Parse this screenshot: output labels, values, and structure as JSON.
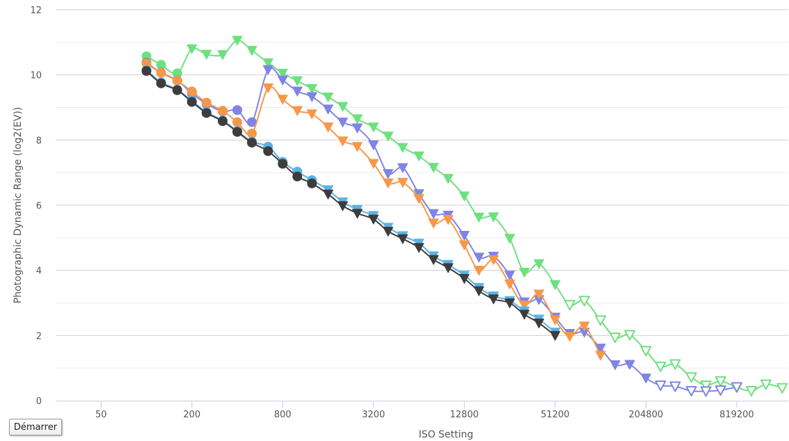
{
  "start_button_label": "Démarrer",
  "chart_data": {
    "type": "line",
    "title": "",
    "xlabel": "ISO Setting",
    "ylabel": "Photographic Dynamic Range (log2(EV))",
    "x_scale": "log2",
    "xlim": [
      25,
      1800000
    ],
    "ylim": [
      0,
      12
    ],
    "x_ticks": [
      50,
      200,
      800,
      3200,
      12800,
      51200,
      204800,
      819200
    ],
    "y_ticks": [
      0,
      2,
      4,
      6,
      8,
      10,
      12
    ],
    "grid": "horizontal",
    "legend": "none",
    "series": [
      {
        "color": "#6fe07f",
        "points": [
          {
            "iso": 100,
            "dr": 10.57,
            "marker": "circle"
          },
          {
            "iso": 125,
            "dr": 10.31,
            "marker": "circle"
          },
          {
            "iso": 160,
            "dr": 10.05,
            "marker": "circle"
          },
          {
            "iso": 200,
            "dr": 10.8,
            "marker": "tri"
          },
          {
            "iso": 250,
            "dr": 10.63,
            "marker": "tri"
          },
          {
            "iso": 320,
            "dr": 10.62,
            "marker": "tri"
          },
          {
            "iso": 400,
            "dr": 11.06,
            "marker": "tri"
          },
          {
            "iso": 500,
            "dr": 10.75,
            "marker": "tri"
          },
          {
            "iso": 640,
            "dr": 10.37,
            "marker": "tri"
          },
          {
            "iso": 800,
            "dr": 10.05,
            "marker": "tri"
          },
          {
            "iso": 1000,
            "dr": 9.82,
            "marker": "tri"
          },
          {
            "iso": 1250,
            "dr": 9.58,
            "marker": "tri"
          },
          {
            "iso": 1600,
            "dr": 9.32,
            "marker": "tri"
          },
          {
            "iso": 2000,
            "dr": 9.03,
            "marker": "tri"
          },
          {
            "iso": 2500,
            "dr": 8.65,
            "marker": "tri"
          },
          {
            "iso": 3200,
            "dr": 8.4,
            "marker": "tri"
          },
          {
            "iso": 4000,
            "dr": 8.12,
            "marker": "tri"
          },
          {
            "iso": 5000,
            "dr": 7.77,
            "marker": "tri"
          },
          {
            "iso": 6400,
            "dr": 7.51,
            "marker": "tri"
          },
          {
            "iso": 8000,
            "dr": 7.16,
            "marker": "tri"
          },
          {
            "iso": 10000,
            "dr": 6.82,
            "marker": "tri"
          },
          {
            "iso": 12800,
            "dr": 6.28,
            "marker": "tri"
          },
          {
            "iso": 16000,
            "dr": 5.63,
            "marker": "tri"
          },
          {
            "iso": 20000,
            "dr": 5.64,
            "marker": "tri"
          },
          {
            "iso": 25600,
            "dr": 4.98,
            "marker": "tri"
          },
          {
            "iso": 32000,
            "dr": 3.94,
            "marker": "tri"
          },
          {
            "iso": 40000,
            "dr": 4.2,
            "marker": "tri"
          },
          {
            "iso": 51200,
            "dr": 3.56,
            "marker": "tri"
          },
          {
            "iso": 64000,
            "dr": 2.94,
            "marker": "tri-open"
          },
          {
            "iso": 80000,
            "dr": 3.07,
            "marker": "tri-open"
          },
          {
            "iso": 102400,
            "dr": 2.47,
            "marker": "tri-open"
          },
          {
            "iso": 128000,
            "dr": 1.94,
            "marker": "tri-open"
          },
          {
            "iso": 160000,
            "dr": 2.02,
            "marker": "tri-open"
          },
          {
            "iso": 204800,
            "dr": 1.53,
            "marker": "tri-open"
          },
          {
            "iso": 256000,
            "dr": 1.05,
            "marker": "tri-open"
          },
          {
            "iso": 320000,
            "dr": 1.12,
            "marker": "tri-open"
          },
          {
            "iso": 409600,
            "dr": 0.72,
            "marker": "tri-open"
          },
          {
            "iso": 512000,
            "dr": 0.47,
            "marker": "tri-open"
          },
          {
            "iso": 640000,
            "dr": 0.6,
            "marker": "tri-open"
          },
          {
            "iso": 819200,
            "dr": 0.41,
            "marker": "tri-open"
          },
          {
            "iso": 1024000,
            "dr": 0.3,
            "marker": "tri-open"
          },
          {
            "iso": 1280000,
            "dr": 0.5,
            "marker": "tri-open"
          },
          {
            "iso": 1638400,
            "dr": 0.39,
            "marker": "tri-open"
          }
        ]
      },
      {
        "color": "#7f84e6",
        "points": [
          {
            "iso": 100,
            "dr": 10.38,
            "marker": "circle"
          },
          {
            "iso": 125,
            "dr": 10.07,
            "marker": "circle"
          },
          {
            "iso": 160,
            "dr": 9.83,
            "marker": "circle"
          },
          {
            "iso": 200,
            "dr": 9.43,
            "marker": "circle"
          },
          {
            "iso": 250,
            "dr": 9.11,
            "marker": "circle"
          },
          {
            "iso": 320,
            "dr": 8.88,
            "marker": "circle"
          },
          {
            "iso": 400,
            "dr": 8.92,
            "marker": "circle"
          },
          {
            "iso": 500,
            "dr": 8.55,
            "marker": "circle"
          },
          {
            "iso": 640,
            "dr": 10.16,
            "marker": "tri"
          },
          {
            "iso": 800,
            "dr": 9.84,
            "marker": "tri"
          },
          {
            "iso": 1000,
            "dr": 9.5,
            "marker": "tri"
          },
          {
            "iso": 1250,
            "dr": 9.33,
            "marker": "tri"
          },
          {
            "iso": 1600,
            "dr": 8.95,
            "marker": "tri"
          },
          {
            "iso": 2000,
            "dr": 8.55,
            "marker": "tri"
          },
          {
            "iso": 2500,
            "dr": 8.37,
            "marker": "tri"
          },
          {
            "iso": 3200,
            "dr": 7.85,
            "marker": "tri"
          },
          {
            "iso": 4000,
            "dr": 6.97,
            "marker": "tri"
          },
          {
            "iso": 5000,
            "dr": 7.15,
            "marker": "tri"
          },
          {
            "iso": 6400,
            "dr": 6.35,
            "marker": "tri"
          },
          {
            "iso": 8000,
            "dr": 5.74,
            "marker": "tri"
          },
          {
            "iso": 10000,
            "dr": 5.69,
            "marker": "tri"
          },
          {
            "iso": 12800,
            "dr": 5.07,
            "marker": "tri"
          },
          {
            "iso": 16000,
            "dr": 4.4,
            "marker": "tri"
          },
          {
            "iso": 20000,
            "dr": 4.43,
            "marker": "tri"
          },
          {
            "iso": 25600,
            "dr": 3.85,
            "marker": "tri"
          },
          {
            "iso": 32000,
            "dr": 3.03,
            "marker": "tri"
          },
          {
            "iso": 40000,
            "dr": 3.1,
            "marker": "tri"
          },
          {
            "iso": 51200,
            "dr": 2.56,
            "marker": "tri"
          },
          {
            "iso": 64000,
            "dr": 2.06,
            "marker": "tri"
          },
          {
            "iso": 80000,
            "dr": 2.1,
            "marker": "tri"
          },
          {
            "iso": 102400,
            "dr": 1.61,
            "marker": "tri"
          },
          {
            "iso": 128000,
            "dr": 1.1,
            "marker": "tri"
          },
          {
            "iso": 160000,
            "dr": 1.11,
            "marker": "tri"
          },
          {
            "iso": 204800,
            "dr": 0.69,
            "marker": "tri"
          },
          {
            "iso": 256000,
            "dr": 0.47,
            "marker": "tri-open"
          },
          {
            "iso": 320000,
            "dr": 0.44,
            "marker": "tri-open"
          },
          {
            "iso": 409600,
            "dr": 0.3,
            "marker": "tri-open"
          },
          {
            "iso": 512000,
            "dr": 0.29,
            "marker": "tri-open"
          },
          {
            "iso": 640000,
            "dr": 0.32,
            "marker": "tri-open"
          },
          {
            "iso": 819200,
            "dr": 0.42,
            "marker": "tri-open"
          }
        ]
      },
      {
        "color": "#f5984a",
        "points": [
          {
            "iso": 100,
            "dr": 10.35,
            "marker": "circle"
          },
          {
            "iso": 125,
            "dr": 10.06,
            "marker": "circle"
          },
          {
            "iso": 160,
            "dr": 9.82,
            "marker": "circle"
          },
          {
            "iso": 200,
            "dr": 9.49,
            "marker": "circle"
          },
          {
            "iso": 250,
            "dr": 9.15,
            "marker": "circle"
          },
          {
            "iso": 320,
            "dr": 8.9,
            "marker": "circle"
          },
          {
            "iso": 400,
            "dr": 8.55,
            "marker": "circle"
          },
          {
            "iso": 500,
            "dr": 8.2,
            "marker": "circle"
          },
          {
            "iso": 640,
            "dr": 9.6,
            "marker": "tri"
          },
          {
            "iso": 800,
            "dr": 9.25,
            "marker": "tri"
          },
          {
            "iso": 1000,
            "dr": 8.9,
            "marker": "tri"
          },
          {
            "iso": 1250,
            "dr": 8.8,
            "marker": "tri"
          },
          {
            "iso": 1600,
            "dr": 8.4,
            "marker": "tri"
          },
          {
            "iso": 2000,
            "dr": 7.97,
            "marker": "tri"
          },
          {
            "iso": 2500,
            "dr": 7.8,
            "marker": "tri"
          },
          {
            "iso": 3200,
            "dr": 7.28,
            "marker": "tri"
          },
          {
            "iso": 4000,
            "dr": 6.68,
            "marker": "tri"
          },
          {
            "iso": 5000,
            "dr": 6.7,
            "marker": "tri"
          },
          {
            "iso": 6400,
            "dr": 6.2,
            "marker": "tri"
          },
          {
            "iso": 8000,
            "dr": 5.45,
            "marker": "tri"
          },
          {
            "iso": 10000,
            "dr": 5.56,
            "marker": "tri"
          },
          {
            "iso": 12800,
            "dr": 4.78,
            "marker": "tri"
          },
          {
            "iso": 16000,
            "dr": 4.0,
            "marker": "tri"
          },
          {
            "iso": 20000,
            "dr": 4.32,
            "marker": "tri"
          },
          {
            "iso": 25600,
            "dr": 3.58,
            "marker": "tri"
          },
          {
            "iso": 32000,
            "dr": 2.93,
            "marker": "tri"
          },
          {
            "iso": 40000,
            "dr": 3.27,
            "marker": "tri"
          },
          {
            "iso": 51200,
            "dr": 2.48,
            "marker": "tri"
          },
          {
            "iso": 64000,
            "dr": 1.97,
            "marker": "tri"
          },
          {
            "iso": 80000,
            "dr": 2.29,
            "marker": "tri"
          },
          {
            "iso": 102400,
            "dr": 1.39,
            "marker": "tri"
          }
        ]
      },
      {
        "color": "#5ab2e8",
        "points": [
          {
            "iso": 100,
            "dr": 10.15,
            "marker": "circle"
          },
          {
            "iso": 125,
            "dr": 9.77,
            "marker": "circle"
          },
          {
            "iso": 160,
            "dr": 9.55,
            "marker": "circle"
          },
          {
            "iso": 200,
            "dr": 9.2,
            "marker": "circle"
          },
          {
            "iso": 250,
            "dr": 8.86,
            "marker": "circle"
          },
          {
            "iso": 320,
            "dr": 8.6,
            "marker": "circle"
          },
          {
            "iso": 400,
            "dr": 8.28,
            "marker": "circle"
          },
          {
            "iso": 500,
            "dr": 7.95,
            "marker": "circle"
          },
          {
            "iso": 640,
            "dr": 7.8,
            "marker": "circle"
          },
          {
            "iso": 800,
            "dr": 7.33,
            "marker": "circle"
          },
          {
            "iso": 1000,
            "dr": 7.03,
            "marker": "circle"
          },
          {
            "iso": 1250,
            "dr": 6.77,
            "marker": "circle"
          },
          {
            "iso": 1600,
            "dr": 6.47,
            "marker": "tri"
          },
          {
            "iso": 2000,
            "dr": 6.1,
            "marker": "tri"
          },
          {
            "iso": 2500,
            "dr": 5.87,
            "marker": "tri"
          },
          {
            "iso": 3200,
            "dr": 5.68,
            "marker": "tri"
          },
          {
            "iso": 4000,
            "dr": 5.32,
            "marker": "tri"
          },
          {
            "iso": 5000,
            "dr": 5.06,
            "marker": "tri"
          },
          {
            "iso": 6400,
            "dr": 4.83,
            "marker": "tri"
          },
          {
            "iso": 8000,
            "dr": 4.44,
            "marker": "tri"
          },
          {
            "iso": 10000,
            "dr": 4.18,
            "marker": "tri"
          },
          {
            "iso": 12800,
            "dr": 3.85,
            "marker": "tri"
          },
          {
            "iso": 16000,
            "dr": 3.47,
            "marker": "tri"
          },
          {
            "iso": 20000,
            "dr": 3.21,
            "marker": "tri"
          },
          {
            "iso": 25600,
            "dr": 3.07,
            "marker": "tri"
          },
          {
            "iso": 32000,
            "dr": 2.75,
            "marker": "tri"
          },
          {
            "iso": 40000,
            "dr": 2.5,
            "marker": "tri"
          },
          {
            "iso": 51200,
            "dr": 2.1,
            "marker": "tri"
          }
        ]
      },
      {
        "color": "#3d3d3d",
        "points": [
          {
            "iso": 100,
            "dr": 10.12,
            "marker": "circle"
          },
          {
            "iso": 125,
            "dr": 9.74,
            "marker": "circle"
          },
          {
            "iso": 160,
            "dr": 9.53,
            "marker": "circle"
          },
          {
            "iso": 200,
            "dr": 9.17,
            "marker": "circle"
          },
          {
            "iso": 250,
            "dr": 8.83,
            "marker": "circle"
          },
          {
            "iso": 320,
            "dr": 8.58,
            "marker": "circle"
          },
          {
            "iso": 400,
            "dr": 8.25,
            "marker": "circle"
          },
          {
            "iso": 500,
            "dr": 7.92,
            "marker": "circle"
          },
          {
            "iso": 640,
            "dr": 7.66,
            "marker": "circle"
          },
          {
            "iso": 800,
            "dr": 7.27,
            "marker": "circle"
          },
          {
            "iso": 1000,
            "dr": 6.88,
            "marker": "circle"
          },
          {
            "iso": 1250,
            "dr": 6.67,
            "marker": "circle"
          },
          {
            "iso": 1600,
            "dr": 6.34,
            "marker": "tri"
          },
          {
            "iso": 2000,
            "dr": 5.98,
            "marker": "tri"
          },
          {
            "iso": 2500,
            "dr": 5.75,
            "marker": "tri"
          },
          {
            "iso": 3200,
            "dr": 5.57,
            "marker": "tri"
          },
          {
            "iso": 4000,
            "dr": 5.2,
            "marker": "tri"
          },
          {
            "iso": 5000,
            "dr": 4.97,
            "marker": "tri"
          },
          {
            "iso": 6400,
            "dr": 4.7,
            "marker": "tri"
          },
          {
            "iso": 8000,
            "dr": 4.33,
            "marker": "tri"
          },
          {
            "iso": 10000,
            "dr": 4.08,
            "marker": "tri"
          },
          {
            "iso": 12800,
            "dr": 3.75,
            "marker": "tri"
          },
          {
            "iso": 16000,
            "dr": 3.37,
            "marker": "tri"
          },
          {
            "iso": 20000,
            "dr": 3.12,
            "marker": "tri"
          },
          {
            "iso": 25600,
            "dr": 3.0,
            "marker": "tri"
          },
          {
            "iso": 32000,
            "dr": 2.65,
            "marker": "tri"
          },
          {
            "iso": 40000,
            "dr": 2.38,
            "marker": "tri"
          },
          {
            "iso": 51200,
            "dr": 2.0,
            "marker": "tri"
          }
        ]
      }
    ]
  }
}
